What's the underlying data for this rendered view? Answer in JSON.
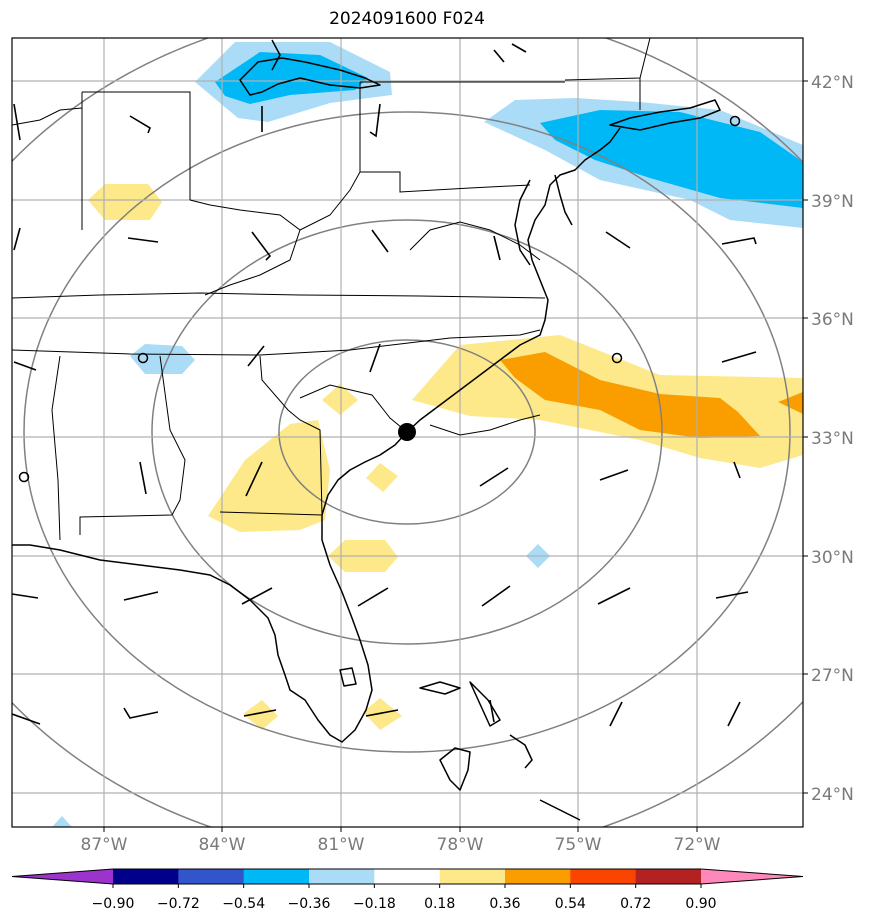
{
  "title": "2024091600 F024",
  "map": {
    "lat_labels": [
      "42°N",
      "39°N",
      "36°N",
      "33°N",
      "30°N",
      "27°N",
      "24°N"
    ],
    "lon_labels": [
      "87°W",
      "84°W",
      "81°W",
      "78°W",
      "75°W",
      "72°W"
    ],
    "grid": true,
    "center_marker": "storm-center-dot",
    "range_rings": 6
  },
  "fill_colors": {
    "light_blue": "#abdcf7",
    "cyan": "#00b8f5",
    "light_yellow": "#fde98a",
    "orange": "#fa9e00"
  },
  "colorbar": {
    "labels": [
      "−0.90",
      "−0.72",
      "−0.54",
      "−0.36",
      "−0.18",
      "0.18",
      "0.36",
      "0.54",
      "0.72",
      "0.90"
    ],
    "colors": [
      "#9b33cc",
      "#00008b",
      "#3355cc",
      "#00b8f5",
      "#abdcf7",
      "#ffffff",
      "#fde98a",
      "#fa9e00",
      "#fa4500",
      "#b22222",
      "#ff88bb"
    ]
  }
}
